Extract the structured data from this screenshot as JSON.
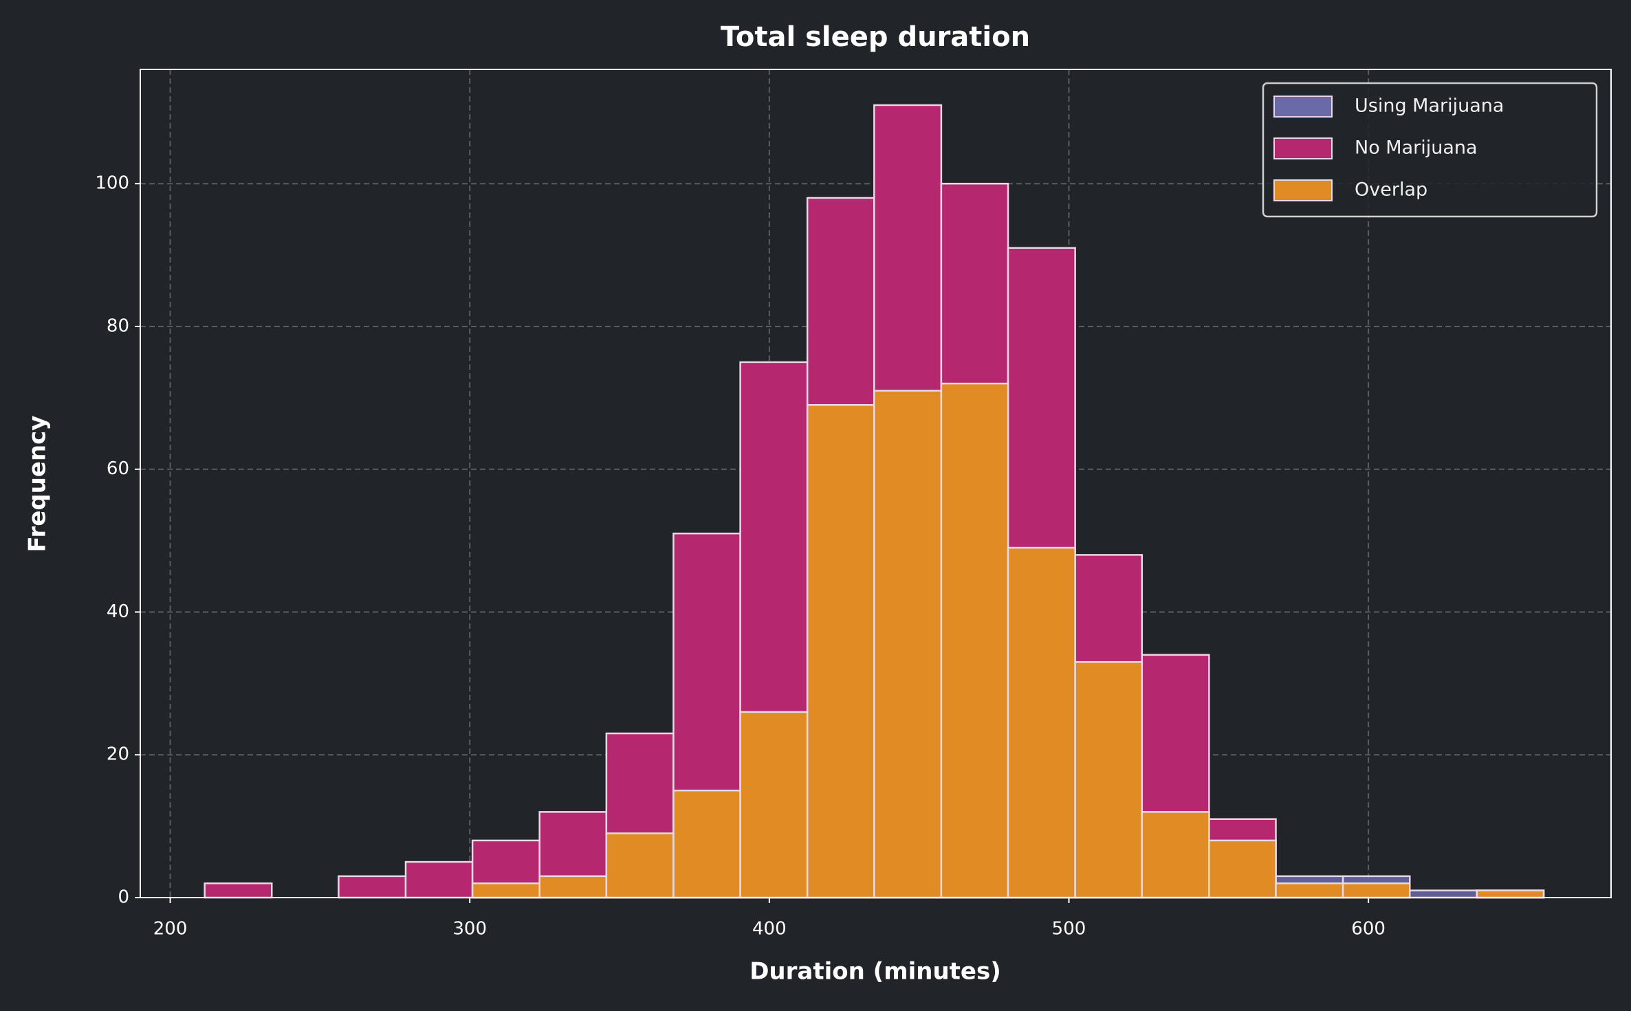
{
  "chart_data": {
    "type": "histogram",
    "title": "Total sleep duration",
    "x_label": "Duration (minutes)",
    "y_label": "Frequency",
    "bins": [
      211.5,
      233.9,
      256.2,
      278.6,
      300.9,
      323.3,
      345.6,
      368.0,
      390.3,
      412.7,
      435.0,
      457.4,
      479.7,
      502.1,
      524.4,
      546.8,
      569.1,
      591.5,
      613.8,
      636.2,
      658.5
    ],
    "series": [
      {
        "name": "Using Marijuana",
        "color": "#6a6aa8",
        "values": [
          0,
          0,
          0,
          0,
          2,
          3,
          9,
          15,
          26,
          69,
          71,
          72,
          49,
          33,
          12,
          8,
          3,
          3,
          1,
          1
        ]
      },
      {
        "name": "No Marijuana",
        "color": "#b5276f",
        "values": [
          2,
          0,
          3,
          5,
          8,
          12,
          23,
          51,
          75,
          98,
          111,
          100,
          91,
          48,
          34,
          11,
          2,
          2,
          0,
          1
        ]
      },
      {
        "name": "Overlap",
        "color": "#e08b24",
        "values": [
          0,
          0,
          0,
          0,
          2,
          3,
          9,
          15,
          26,
          69,
          71,
          72,
          49,
          33,
          12,
          8,
          2,
          2,
          0,
          1
        ]
      }
    ],
    "xlim": [
      190,
      681
    ],
    "ylim": [
      0,
      116
    ],
    "xticks": [
      200,
      300,
      400,
      500,
      600
    ],
    "yticks": [
      0,
      20,
      40,
      60,
      80,
      100
    ],
    "grid": true,
    "legend": "upper right"
  }
}
